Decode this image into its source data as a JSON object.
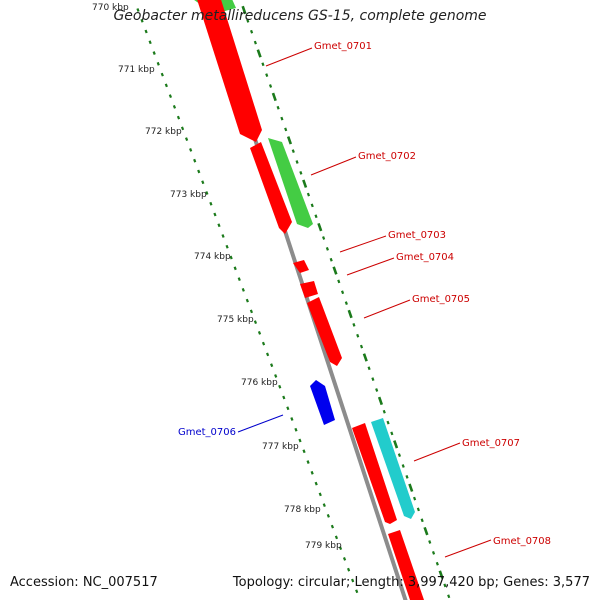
{
  "title": "Geobacter metallireducens GS-15, complete genome",
  "footer": {
    "accession": "Accession: NC_007517",
    "summary": "Topology: circular; Length: 3,997,420 bp; Genes: 3,577"
  },
  "colors": {
    "backbone": "#8c8c8c",
    "tick": "#1b7a1b",
    "label_red": "#cc0000",
    "label_blue": "#0000cc"
  },
  "ticks": [
    "770 kbp",
    "771 kbp",
    "772 kbp",
    "773 kbp",
    "774 kbp",
    "775 kbp",
    "776 kbp",
    "777 kbp",
    "778 kbp",
    "779 kbp"
  ],
  "genes": [
    {
      "name": "",
      "track": "outer-plus",
      "start": 0,
      "end": 0,
      "color": "#44cc44"
    },
    {
      "name": "Gmet_0701",
      "track": "inner-plus",
      "start": 0,
      "end": 0,
      "color": "#ff0000",
      "label_color": "#cc0000"
    },
    {
      "name": "Gmet_0702",
      "track": "outer-plus",
      "start": 0,
      "end": 0,
      "color": "#44cc44",
      "label_color": "#cc0000"
    },
    {
      "name": "",
      "track": "inner-plus",
      "start": 0,
      "end": 0,
      "color": "#ff0000"
    },
    {
      "name": "Gmet_0703",
      "track": "inner-plus",
      "start": 0,
      "end": 0,
      "color": "#ff0000",
      "label_color": "#cc0000"
    },
    {
      "name": "Gmet_0704",
      "track": "inner-plus",
      "start": 0,
      "end": 0,
      "color": "#ff0000",
      "label_color": "#cc0000"
    },
    {
      "name": "Gmet_0705",
      "track": "inner-plus",
      "start": 0,
      "end": 0,
      "color": "#ff0000",
      "label_color": "#cc0000"
    },
    {
      "name": "Gmet_0706",
      "track": "minus",
      "start": 0,
      "end": 0,
      "color": "#0000ee",
      "label_color": "#0000cc"
    },
    {
      "name": "Gmet_0707",
      "track": "outer-plus",
      "start": 0,
      "end": 0,
      "color": "#22cccc",
      "label_color": "#cc0000"
    },
    {
      "name": "",
      "track": "inner-plus",
      "start": 0,
      "end": 0,
      "color": "#ff0000"
    },
    {
      "name": "Gmet_0708",
      "track": "inner-plus",
      "start": 0,
      "end": 0,
      "color": "#ff0000",
      "label_color": "#cc0000"
    }
  ]
}
